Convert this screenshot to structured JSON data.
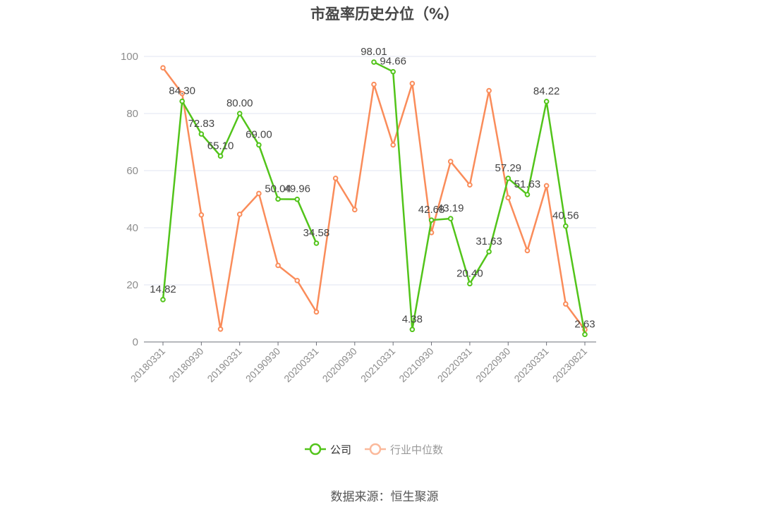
{
  "chart_data": {
    "type": "line",
    "title": "市盈率历史分位（%）",
    "xlabel": "",
    "ylabel": "",
    "ylim": [
      0,
      100
    ],
    "yticks": [
      0,
      20,
      40,
      60,
      80,
      100
    ],
    "grid": true,
    "legend_position": "bottom-center",
    "categories": [
      "20180331",
      "20180630",
      "20180930",
      "20181231",
      "20190331",
      "20190630",
      "20190930",
      "20191231",
      "20200331",
      "20200630",
      "20200930",
      "20201231",
      "20210331",
      "20210630",
      "20210930",
      "20211231",
      "20220331",
      "20220630",
      "20220930",
      "20221231",
      "20230331",
      "20230630",
      "20230821"
    ],
    "tick_labels": [
      "20180331",
      "20180930",
      "20190331",
      "20190930",
      "20200331",
      "20200930",
      "20210331",
      "20210930",
      "20220331",
      "20220930",
      "20230331",
      "20230821"
    ],
    "series": [
      {
        "name": "公司",
        "color": "#52c41a",
        "labels": true,
        "values": [
          14.82,
          84.3,
          72.83,
          65.1,
          80.0,
          69.0,
          50.04,
          49.96,
          34.58,
          null,
          null,
          98.01,
          94.66,
          4.38,
          42.68,
          43.19,
          20.4,
          31.63,
          57.29,
          51.63,
          84.22,
          40.56,
          2.63
        ]
      },
      {
        "name": "行业中位数",
        "color": "#fa8c5a",
        "labels": false,
        "values": [
          96.0,
          87.0,
          44.5,
          4.5,
          44.7,
          52.0,
          26.8,
          21.5,
          10.5,
          57.3,
          46.3,
          90.2,
          69.0,
          90.5,
          38.3,
          63.2,
          55.0,
          88.0,
          50.5,
          32.0,
          54.7,
          13.3,
          4.3
        ]
      }
    ]
  },
  "source": "数据来源：恒生聚源"
}
